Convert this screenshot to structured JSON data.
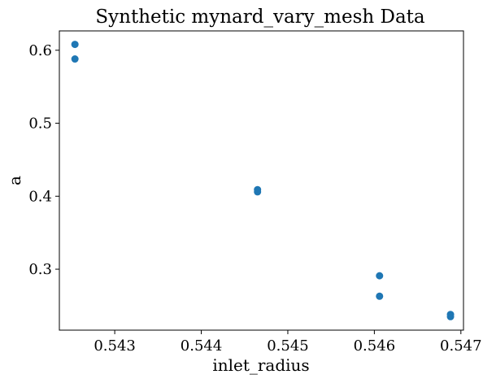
{
  "chart_data": {
    "type": "scatter",
    "title": "Synthetic mynard_vary_mesh Data",
    "xlabel": "inlet_radius",
    "ylabel": "a",
    "xlim": [
      0.54236,
      0.54703
    ],
    "ylim": [
      0.2165,
      0.6265
    ],
    "x_ticks": [
      {
        "value": 0.543,
        "label": "0.543"
      },
      {
        "value": 0.544,
        "label": "0.544"
      },
      {
        "value": 0.545,
        "label": "0.545"
      },
      {
        "value": 0.546,
        "label": "0.546"
      },
      {
        "value": 0.547,
        "label": "0.547"
      }
    ],
    "y_ticks": [
      {
        "value": 0.3,
        "label": "0.3"
      },
      {
        "value": 0.4,
        "label": "0.4"
      },
      {
        "value": 0.5,
        "label": "0.5"
      },
      {
        "value": 0.6,
        "label": "0.6"
      }
    ],
    "grid": false,
    "marker_color": "#1f77b4",
    "points": [
      {
        "x": 0.54254,
        "y": 0.608
      },
      {
        "x": 0.54254,
        "y": 0.588
      },
      {
        "x": 0.54465,
        "y": 0.409
      },
      {
        "x": 0.54465,
        "y": 0.406
      },
      {
        "x": 0.54606,
        "y": 0.291
      },
      {
        "x": 0.54606,
        "y": 0.263
      },
      {
        "x": 0.54688,
        "y": 0.238
      },
      {
        "x": 0.54688,
        "y": 0.235
      }
    ]
  }
}
